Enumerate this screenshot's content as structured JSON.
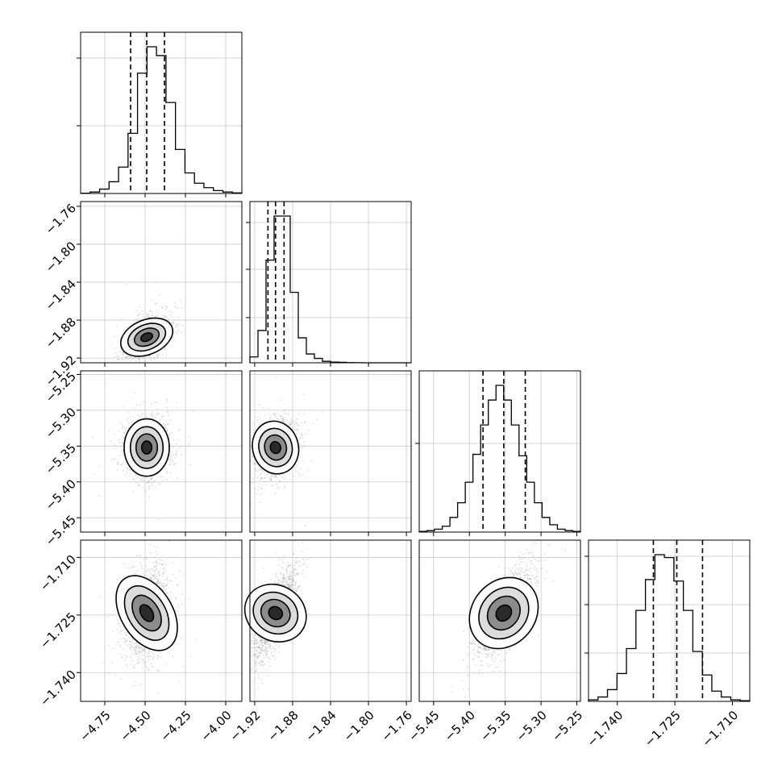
{
  "chart_data": {
    "type": "corner",
    "params": [
      {
        "range": [
          -4.9,
          -3.9
        ],
        "ticks": [
          -4.75,
          -4.5,
          -4.25,
          -4.0
        ],
        "tick_labels": [
          "−4.75",
          "−4.50",
          "−4.25",
          "−4.00"
        ],
        "quantiles": [
          -4.59,
          -4.49,
          -4.38
        ],
        "hist_counts": [
          0.2,
          1,
          3,
          8,
          18,
          41,
          82,
          100,
          94,
          62,
          30,
          14,
          7,
          4,
          2,
          1,
          0.4
        ],
        "hist_yticks": [
          0.42,
          0.84
        ],
        "contour_scale": [
          0.07,
          0.045
        ]
      },
      {
        "range": [
          -1.925,
          -1.755
        ],
        "ticks": [
          -1.92,
          -1.88,
          -1.84,
          -1.8,
          -1.76
        ],
        "tick_labels": [
          "−1.92",
          "−1.88",
          "−1.84",
          "−1.80",
          "−1.76"
        ],
        "quantiles": [
          -1.906,
          -1.898,
          -1.889
        ],
        "hist_counts": [
          4,
          22,
          70,
          100,
          100,
          48,
          17,
          6,
          3,
          1,
          0.5,
          0.3,
          0.1,
          0.05,
          0,
          0,
          0,
          0,
          0,
          0
        ],
        "hist_yticks": [
          0.28,
          0.58,
          0.87
        ],
        "contour_scale": [
          0.011,
          0.011
        ]
      },
      {
        "range": [
          -5.47,
          -5.245
        ],
        "ticks": [
          -5.45,
          -5.4,
          -5.35,
          -5.3,
          -5.25
        ],
        "tick_labels": [
          "−5.45",
          "−5.40",
          "−5.35",
          "−5.30",
          "−5.25"
        ],
        "quantiles": [
          -5.381,
          -5.352,
          -5.322
        ],
        "hist_counts": [
          0.5,
          1,
          2,
          4,
          10,
          20,
          34,
          53,
          73,
          90,
          100,
          90,
          73,
          52,
          34,
          20,
          10,
          5,
          2,
          1,
          0.5
        ],
        "hist_yticks": [
          0.55
        ],
        "contour_scale": [
          0.02,
          0.025
        ]
      },
      {
        "range": [
          -1.7475,
          -1.7055
        ],
        "ticks": [
          -1.74,
          -1.725,
          -1.71
        ],
        "tick_labels": [
          "−1.740",
          "−1.725",
          "−1.710"
        ],
        "quantiles": [
          -1.7306,
          -1.7245,
          -1.7178
        ],
        "hist_counts": [
          1,
          3,
          8,
          19,
          36,
          62,
          83,
          100,
          98,
          82,
          62,
          34,
          18,
          7,
          3,
          1,
          0.5
        ],
        "hist_yticks": [
          0.3,
          0.6,
          0.9
        ],
        "contour_scale": [
          0.006,
          0.006
        ]
      }
    ],
    "means": [
      -4.49,
      -1.898,
      -5.352,
      -1.7245
    ],
    "correlations": {
      "1-0": 0.45,
      "2-0": 0.0,
      "2-1": 0.2,
      "3-0": 0.3,
      "3-1": 0.75,
      "3-2": 0.75
    },
    "grid": true
  }
}
